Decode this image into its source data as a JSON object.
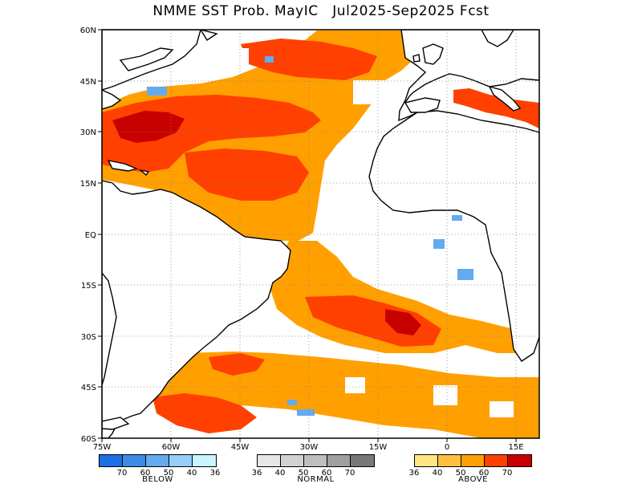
{
  "title": "NMME SST Prob. MayIC   Jul2025-Sep2025 Fcst",
  "colors": {
    "above": [
      "#ffe680",
      "#ffc040",
      "#ffa000",
      "#ff4000",
      "#c80000"
    ],
    "below": [
      "#1e6ee6",
      "#3c8ce6",
      "#64aaf0",
      "#96cdfa",
      "#c8f5ff"
    ],
    "normal": [
      "#e6e6e6",
      "#d2d2d2",
      "#bebebe",
      "#a0a0a0",
      "#787878"
    ],
    "land_outline": "#000000",
    "grid": "#808080"
  },
  "map": {
    "lon_range": [
      -75,
      20
    ],
    "lat_range": [
      -60,
      60
    ],
    "x_tick_labels": [
      "75W",
      "60W",
      "45W",
      "30W",
      "15W",
      "0",
      "15E"
    ],
    "y_tick_labels": [
      "60N",
      "45N",
      "30N",
      "15N",
      "EQ",
      "15S",
      "30S",
      "45S",
      "60S"
    ]
  },
  "legend": {
    "below": {
      "ticks": [
        "70",
        "60",
        "50",
        "40",
        "36"
      ],
      "label": "BELOW"
    },
    "normal": {
      "ticks": [
        "36",
        "40",
        "50",
        "60",
        "70"
      ],
      "label": "NORMAL"
    },
    "above": {
      "ticks": [
        "36",
        "40",
        "50",
        "60",
        "70"
      ],
      "label": "ABOVE"
    }
  }
}
